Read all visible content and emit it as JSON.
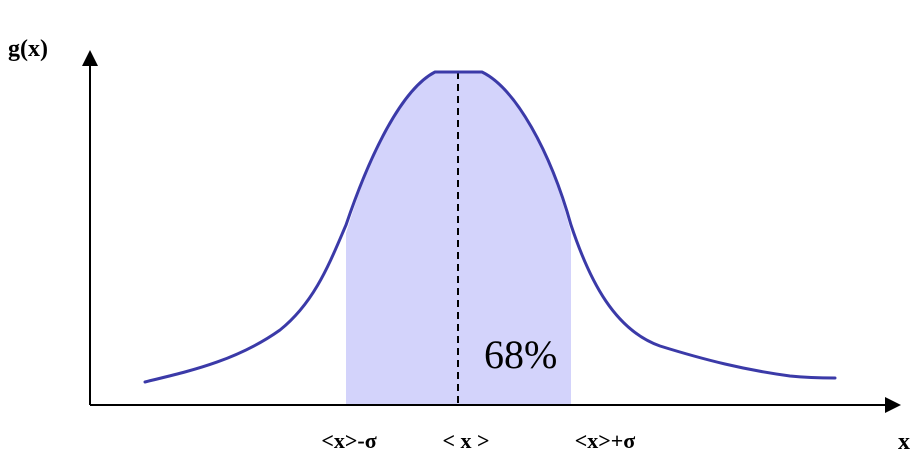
{
  "y_axis_label": "g(x)",
  "x_axis_label": "x",
  "tick_labels": {
    "minus_sigma": "<x>-σ",
    "mean": "< x >",
    "plus_sigma": "<x>+σ"
  },
  "area_label": "68%",
  "colors": {
    "curve": "#3b3aa8",
    "shaded_area": "#d3d3fb",
    "axes": "#000000",
    "mean_line": "#000000"
  }
}
